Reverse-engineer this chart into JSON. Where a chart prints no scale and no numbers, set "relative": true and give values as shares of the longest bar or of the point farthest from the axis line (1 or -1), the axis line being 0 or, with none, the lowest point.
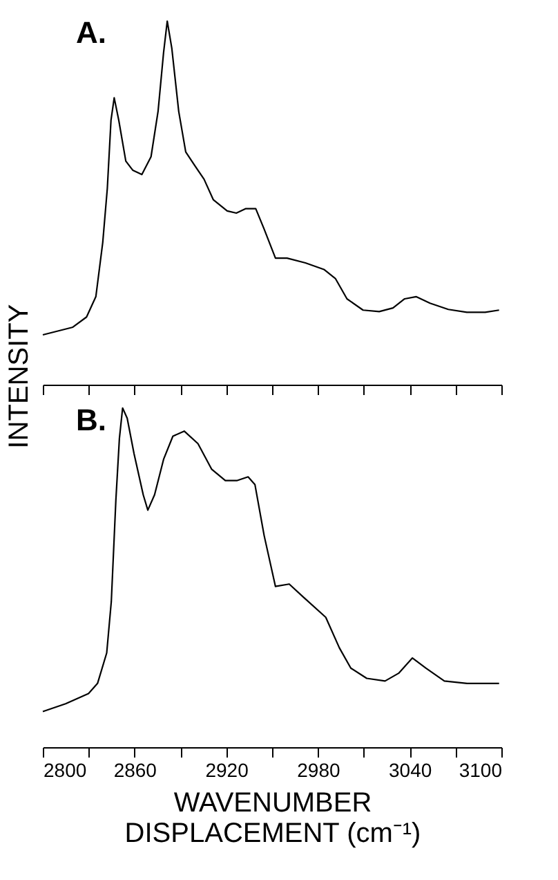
{
  "chart_data": [
    {
      "type": "line",
      "relative": true,
      "ylabel": "INTENSITY",
      "annotations": [
        "A."
      ],
      "tick_labels": false,
      "grid": false,
      "marker": "none",
      "line_style": "solid",
      "xlim": [
        2800,
        3100
      ],
      "xticks": [
        2800,
        {
          "value": 2830,
          "label": null
        },
        2860,
        {
          "value": 2890,
          "label": null
        },
        2920,
        {
          "value": 2950,
          "label": null
        },
        2980,
        {
          "value": 3010,
          "label": null
        },
        3040,
        {
          "value": 3070,
          "label": null
        },
        3100
      ],
      "series": [
        {
          "color": "#000000",
          "x": [
            2800,
            2819.6,
            2828.6,
            2834.7,
            2839.2,
            2842.2,
            2844.6,
            2846.7,
            2849.7,
            2854.3,
            2858.8,
            2864.8,
            2870.8,
            2875.4,
            2879,
            2881.4,
            2884.4,
            2888.9,
            2893.5,
            2899.5,
            2905.5,
            2911.5,
            2920.6,
            2926.6,
            2932.6,
            2939.3,
            2944.7,
            2952.2,
            2959.8,
            2971.8,
            2983.9,
            2991.4,
            2999,
            3009.5,
            3020.1,
            3029.1,
            3036.7,
            3044.2,
            3053.3,
            3065.3,
            3077.4,
            3089.4,
            3098.5
          ],
          "values": [
            0.137,
            0.158,
            0.186,
            0.242,
            0.391,
            0.54,
            0.727,
            0.789,
            0.727,
            0.615,
            0.59,
            0.578,
            0.627,
            0.752,
            0.913,
            1.0,
            0.925,
            0.752,
            0.64,
            0.602,
            0.565,
            0.509,
            0.478,
            0.472,
            0.484,
            0.484,
            0.429,
            0.348,
            0.348,
            0.335,
            0.317,
            0.292,
            0.236,
            0.205,
            0.201,
            0.211,
            0.236,
            0.242,
            0.224,
            0.207,
            0.199,
            0.199,
            0.205
          ]
        }
      ]
    },
    {
      "type": "line",
      "relative": true,
      "xlabel": "WAVENUMBER\nDISPLACEMENT (cm⁻¹)",
      "annotations": [
        "B."
      ],
      "tick_labels": "x",
      "grid": false,
      "marker": "none",
      "line_style": "solid",
      "xlim": [
        2800,
        3100
      ],
      "xticks": [
        2800,
        {
          "value": 2830,
          "label": null
        },
        2860,
        {
          "value": 2890,
          "label": null
        },
        2920,
        {
          "value": 2950,
          "label": null
        },
        2980,
        {
          "value": 3010,
          "label": null
        },
        3040,
        {
          "value": 3070,
          "label": null
        },
        3100
      ],
      "series": [
        {
          "color": "#000000",
          "x": [
            2800,
            2814.9,
            2829.9,
            2835.8,
            2841.8,
            2844.8,
            2847.8,
            2850.1,
            2852.2,
            2855.2,
            2859.7,
            2865.7,
            2868.7,
            2873.1,
            2879.1,
            2885.1,
            2892.5,
            2901.5,
            2910.4,
            2919.4,
            2926.9,
            2934.3,
            2938.8,
            2944.8,
            2952.2,
            2961.2,
            2970.1,
            2985.1,
            2994,
            3001.5,
            3011.9,
            3023.9,
            3032.8,
            3041.8,
            3050.7,
            3062.7,
            3077.6,
            3098.5
          ],
          "values": [
            0.105,
            0.128,
            0.158,
            0.188,
            0.278,
            0.429,
            0.729,
            0.91,
            1.0,
            0.97,
            0.865,
            0.744,
            0.699,
            0.744,
            0.85,
            0.917,
            0.932,
            0.895,
            0.82,
            0.786,
            0.786,
            0.797,
            0.774,
            0.624,
            0.474,
            0.481,
            0.444,
            0.383,
            0.293,
            0.233,
            0.203,
            0.195,
            0.218,
            0.263,
            0.233,
            0.195,
            0.188,
            0.188
          ]
        }
      ]
    }
  ]
}
